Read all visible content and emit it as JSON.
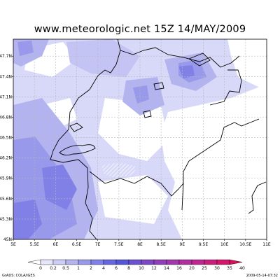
{
  "title": "www.meteorologic.net  15Z 14/MAY/2009",
  "lat_labels": [
    "47.7N",
    "47.4N",
    "47.1N",
    "46.8N",
    "46.5N",
    "46.2N",
    "45.9N",
    "45.6N",
    "45.3N",
    "45N"
  ],
  "lat_values": [
    47.7,
    47.4,
    47.1,
    46.8,
    46.5,
    46.2,
    45.9,
    45.6,
    45.3,
    45.0
  ],
  "lon_labels": [
    "5E",
    "5.5E",
    "6E",
    "6.5E",
    "7E",
    "7.5E",
    "8E",
    "8.5E",
    "9E",
    "9.5E",
    "10E",
    "10.5E",
    "11E"
  ],
  "lon_values": [
    5.0,
    5.5,
    6.0,
    6.5,
    7.0,
    7.5,
    8.0,
    8.5,
    9.0,
    9.5,
    10.0,
    10.5,
    11.0
  ],
  "extent": {
    "lon_min": 5.0,
    "lon_max": 11.0,
    "lat_min": 45.0,
    "lat_max": 47.95
  },
  "legend": {
    "labels": [
      "0",
      "0.2",
      "0.5",
      "1",
      "2",
      "4",
      "6",
      "8",
      "10",
      "12",
      "14",
      "16",
      "20",
      "25",
      "30",
      "35",
      "40"
    ],
    "colors": [
      "#ffffff",
      "#e6e6fa",
      "#ccccf5",
      "#b3b3f0",
      "#9999eb",
      "#8080e6",
      "#6666e0",
      "#5555d8",
      "#6a4fcf",
      "#7d47c4",
      "#8f3fba",
      "#a037ad",
      "#b02f9f",
      "#bd278f",
      "#c81f7d",
      "#d2176a",
      "#da1058"
    ]
  },
  "credit": "GrADS: COLA/IGES",
  "timestamp": "2009-05-14-07:32",
  "colors": {
    "border": "#000000",
    "grid": "#b8b8b8",
    "hatch": "#ffffff"
  }
}
